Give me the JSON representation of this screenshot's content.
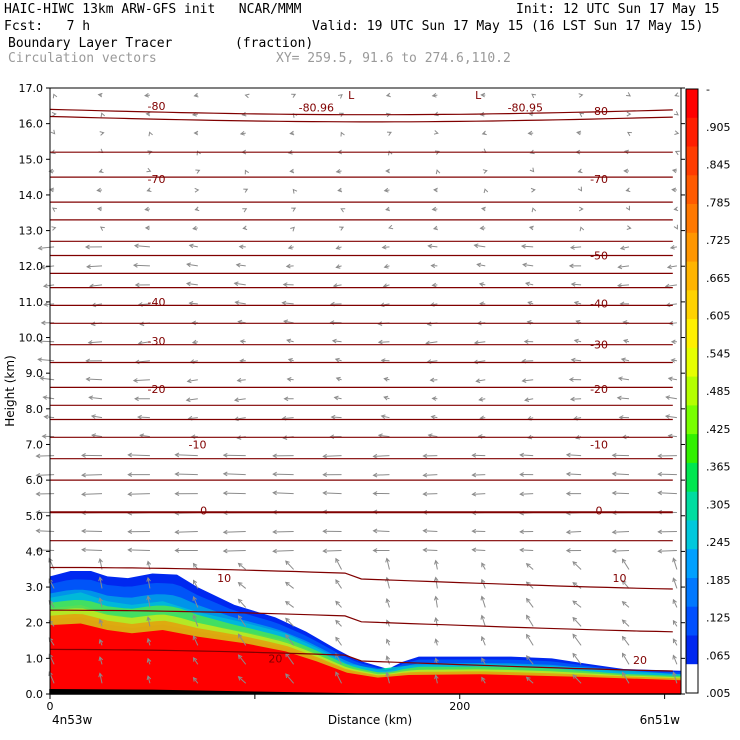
{
  "header": {
    "model_line": "HAIC-HIWC 13km ARW-GFS init   NCAR/MMM",
    "init_line": "Init: 12 UTC Sun 17 May 15",
    "fcst_line": "Fcst:   7 h",
    "valid_line": "Valid: 19 UTC Sun 17 May 15 (16 LST Sun 17 May 15)",
    "field_line": "Boundary Layer Tracer        (fraction)",
    "vectors_line": "Circulation vectors",
    "xy_line": "XY= 259.5, 91.6 to 274.6,110.2"
  },
  "chart_data": {
    "type": "heatmap",
    "title": "Boundary Layer Tracer (fraction)",
    "xlabel": "Distance (km)",
    "ylabel": "Height (km)",
    "xlim": [
      0,
      308
    ],
    "ylim": [
      0,
      17
    ],
    "x_ticks": [
      0,
      100,
      200,
      300
    ],
    "x_tick_labels": [
      "0",
      "",
      "200",
      ""
    ],
    "x_end_labels": [
      "4n53w",
      "6n51w"
    ],
    "y_ticks": [
      0,
      1,
      2,
      3,
      4,
      5,
      6,
      7,
      8,
      9,
      10,
      11,
      12,
      13,
      14,
      15,
      16,
      17
    ],
    "y_tick_labels": [
      "0.0",
      "1.0",
      "2.0",
      "3.0",
      "4.0",
      "5.0",
      "6.0",
      "7.0",
      "8.0",
      "9.0",
      "10.0",
      "11.0",
      "12.0",
      "13.0",
      "14.0",
      "15.0",
      "16.0",
      "17.0"
    ],
    "colorbar": {
      "labels": [
        "-",
        ".905",
        ".845",
        ".785",
        ".725",
        ".665",
        ".605",
        ".545",
        ".485",
        ".425",
        ".365",
        ".305",
        ".245",
        ".185",
        ".125",
        ".065",
        ".005"
      ],
      "colors": [
        "#ff0000",
        "#ff1e00",
        "#ff3c00",
        "#ff5a00",
        "#ff7800",
        "#ff9600",
        "#ffb400",
        "#ffd200",
        "#fff000",
        "#e6ff00",
        "#b4ff00",
        "#78ff00",
        "#32f000",
        "#00e650",
        "#00dca0",
        "#00c8dc",
        "#00a0ff",
        "#0078ff",
        "#0050ff",
        "#0028f0",
        "#ffffff"
      ]
    },
    "tracer_layers": [
      {
        "threshold": ".005",
        "color": "#0028f0",
        "top_km": [
          [
            0,
            3.3
          ],
          [
            10,
            3.45
          ],
          [
            20,
            3.45
          ],
          [
            28,
            3.3
          ],
          [
            38,
            3.25
          ],
          [
            50,
            3.38
          ],
          [
            62,
            3.35
          ],
          [
            72,
            3.0
          ],
          [
            90,
            2.5
          ],
          [
            110,
            2.15
          ],
          [
            125,
            1.75
          ],
          [
            140,
            1.25
          ],
          [
            150,
            0.95
          ],
          [
            165,
            0.7
          ],
          [
            172,
            0.9
          ],
          [
            180,
            1.05
          ],
          [
            205,
            1.05
          ],
          [
            225,
            1.05
          ],
          [
            245,
            1.0
          ],
          [
            262,
            0.85
          ],
          [
            280,
            0.7
          ],
          [
            308,
            0.65
          ]
        ]
      },
      {
        "threshold": ".305",
        "color": "#00dca0",
        "top_km": [
          [
            0,
            2.7
          ],
          [
            15,
            2.85
          ],
          [
            28,
            2.6
          ],
          [
            40,
            2.5
          ],
          [
            55,
            2.6
          ],
          [
            72,
            2.3
          ],
          [
            95,
            2.0
          ],
          [
            115,
            1.7
          ],
          [
            130,
            1.3
          ],
          [
            145,
            0.85
          ],
          [
            160,
            0.7
          ],
          [
            175,
            0.8
          ],
          [
            210,
            0.85
          ],
          [
            260,
            0.75
          ],
          [
            308,
            0.55
          ]
        ]
      },
      {
        "threshold": ".605",
        "color": "#ffd200",
        "top_km": [
          [
            0,
            2.4
          ],
          [
            15,
            2.5
          ],
          [
            28,
            2.25
          ],
          [
            40,
            2.15
          ],
          [
            55,
            2.25
          ],
          [
            72,
            2.0
          ],
          [
            95,
            1.75
          ],
          [
            115,
            1.5
          ],
          [
            130,
            1.15
          ],
          [
            145,
            0.75
          ],
          [
            160,
            0.6
          ],
          [
            175,
            0.68
          ],
          [
            210,
            0.72
          ],
          [
            260,
            0.62
          ],
          [
            308,
            0.48
          ]
        ]
      },
      {
        "threshold": ".845",
        "color": "#ff0000",
        "top_km": [
          [
            0,
            2.1
          ],
          [
            15,
            2.15
          ],
          [
            28,
            1.95
          ],
          [
            40,
            1.85
          ],
          [
            55,
            1.95
          ],
          [
            72,
            1.75
          ],
          [
            95,
            1.55
          ],
          [
            115,
            1.3
          ],
          [
            130,
            1.0
          ],
          [
            145,
            0.65
          ],
          [
            160,
            0.5
          ],
          [
            175,
            0.58
          ],
          [
            210,
            0.6
          ],
          [
            260,
            0.52
          ],
          [
            308,
            0.42
          ]
        ]
      }
    ],
    "terrain_km": [
      [
        0,
        0.12
      ],
      [
        50,
        0.1
      ],
      [
        100,
        0.05
      ],
      [
        150,
        0.0
      ],
      [
        308,
        0.0
      ]
    ],
    "isotherm_labels": [
      {
        "text": "-80",
        "x": 52,
        "y": 16.5
      },
      {
        "text": "-80.96",
        "x": 130,
        "y": 16.45
      },
      {
        "text": "-80.95",
        "x": 232,
        "y": 16.45
      },
      {
        "text": "-80",
        "x": 268,
        "y": 16.35
      },
      {
        "text": "-70",
        "x": 52,
        "y": 14.45
      },
      {
        "text": "-70",
        "x": 268,
        "y": 14.45
      },
      {
        "text": "-50",
        "x": 268,
        "y": 12.3
      },
      {
        "text": "-40",
        "x": 52,
        "y": 11.0
      },
      {
        "text": "-40",
        "x": 268,
        "y": 10.95
      },
      {
        "text": "-30",
        "x": 52,
        "y": 9.9
      },
      {
        "text": "-30",
        "x": 268,
        "y": 9.8
      },
      {
        "text": "-20",
        "x": 52,
        "y": 8.55
      },
      {
        "text": "-20",
        "x": 268,
        "y": 8.55
      },
      {
        "text": "-10",
        "x": 72,
        "y": 7.0
      },
      {
        "text": "-10",
        "x": 268,
        "y": 7.0
      },
      {
        "text": "0",
        "x": 75,
        "y": 5.15
      },
      {
        "text": "0",
        "x": 268,
        "y": 5.15
      },
      {
        "text": "10",
        "x": 85,
        "y": 3.25
      },
      {
        "text": "10",
        "x": 278,
        "y": 3.25
      },
      {
        "text": "20",
        "x": 110,
        "y": 1.0
      },
      {
        "text": "20",
        "x": 288,
        "y": 0.95
      }
    ],
    "low_markers": [
      {
        "text": "L",
        "x": 147,
        "y": 16.8
      },
      {
        "text": "L",
        "x": 209,
        "y": 16.8
      }
    ],
    "isotherm_levels_km": [
      16.4,
      16.2,
      15.2,
      14.5,
      13.8,
      13.3,
      12.7,
      12.3,
      11.8,
      11.4,
      10.9,
      10.4,
      9.8,
      9.3,
      8.6,
      8.1,
      7.7,
      7.2,
      6.6,
      6.0,
      5.1,
      4.3,
      3.3,
      2.1,
      1.0
    ],
    "vector_field": {
      "columns": 14,
      "rows": 32,
      "upper_wind": "weak westward drift",
      "lower_wind": "easterly (leftward) 2-6 km",
      "boundary_layer": "upward tilt near surface"
    }
  }
}
